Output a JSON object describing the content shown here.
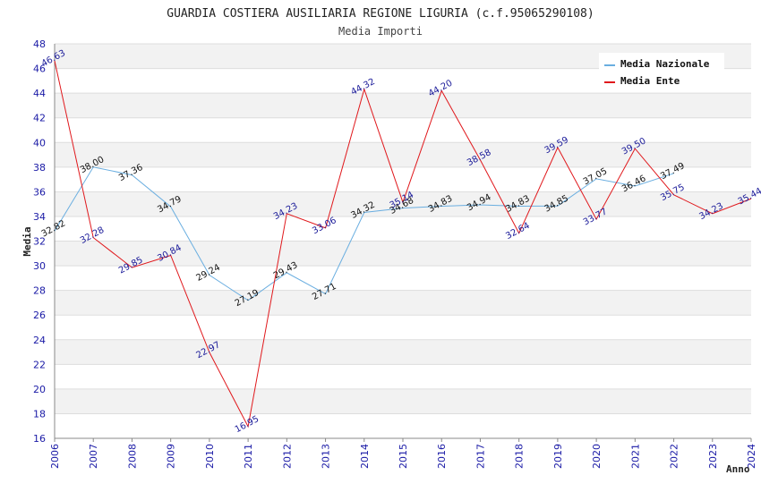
{
  "chart_data": {
    "type": "line",
    "title": "GUARDIA COSTIERA AUSILIARIA REGIONE LIGURIA (c.f.95065290108)",
    "subtitle": "Media Importi",
    "xlabel": "Anno",
    "ylabel": "Media",
    "ylim": [
      16,
      48
    ],
    "y_ticks": [
      16,
      18,
      20,
      22,
      24,
      26,
      28,
      30,
      32,
      34,
      36,
      38,
      40,
      42,
      44,
      46,
      48
    ],
    "categories": [
      "2006",
      "2007",
      "2008",
      "2009",
      "2010",
      "2011",
      "2012",
      "2013",
      "2014",
      "2015",
      "2016",
      "2017",
      "2018",
      "2019",
      "2020",
      "2021",
      "2022",
      "2023",
      "2024"
    ],
    "legend_position": "top-right",
    "series": [
      {
        "name": "Media Nazionale",
        "color": "#6aaee0",
        "x": [
          "2006",
          "2007",
          "2008",
          "2009",
          "2010",
          "2011",
          "2012",
          "2013",
          "2014",
          "2015",
          "2016",
          "2017",
          "2018",
          "2019",
          "2020",
          "2021",
          "2022"
        ],
        "values": [
          32.82,
          38.0,
          37.36,
          34.79,
          29.24,
          27.19,
          29.43,
          27.71,
          34.32,
          34.68,
          34.83,
          34.94,
          34.83,
          34.85,
          37.05,
          36.46,
          37.49
        ],
        "labels": [
          "32.82",
          "38.00",
          "37.36",
          "34.79",
          "29.24",
          "27.19",
          "29.43",
          "27.71",
          "34.32",
          "34.68",
          "34.83",
          "34.94",
          "34.83",
          "34.85",
          "37.05",
          "36.46",
          "37.49"
        ]
      },
      {
        "name": "Media Ente",
        "color": "#e0181c",
        "x": [
          "2006",
          "2007",
          "2008",
          "2009",
          "2010",
          "2011",
          "2012",
          "2013",
          "2014",
          "2015",
          "2016",
          "2017",
          "2018",
          "2019",
          "2020",
          "2021",
          "2022",
          "2023",
          "2024"
        ],
        "values": [
          46.63,
          32.28,
          29.85,
          30.84,
          22.97,
          16.95,
          34.23,
          33.06,
          44.32,
          35.14,
          44.2,
          38.58,
          32.64,
          39.59,
          33.77,
          39.5,
          35.75,
          34.23,
          35.44
        ],
        "labels": [
          "46.63",
          "32.28",
          "29.85",
          "30.84",
          "22.97",
          "16.95",
          "34.23",
          "33.06",
          "44.32",
          "35.14",
          "44.20",
          "38.58",
          "32.64",
          "39.59",
          "33.77",
          "39.50",
          "35.75",
          "34.23",
          "35.44"
        ]
      }
    ]
  }
}
